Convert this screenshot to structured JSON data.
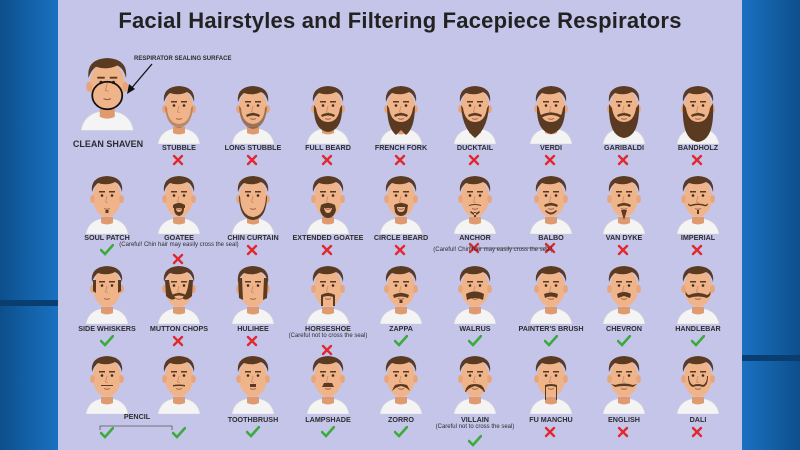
{
  "title": "Facial Hairstyles and Filtering Facepiece Respirators",
  "sealing_label": "RESPIRATOR SEALING SURFACE",
  "clean": {
    "label": "CLEAN SHAVEN"
  },
  "colors": {
    "ok": "#3cab3c",
    "bad": "#e0282d",
    "skin": "#f0b48a",
    "hair": "#5b3a22",
    "shirt": "#f4f4f4"
  },
  "styles": [
    {
      "label": "STUBBLE",
      "ok": false,
      "beard": "stubble"
    },
    {
      "label": "LONG STUBBLE",
      "ok": false,
      "beard": "longstubble"
    },
    {
      "label": "FULL BEARD",
      "ok": false,
      "beard": "full"
    },
    {
      "label": "FRENCH FORK",
      "ok": false,
      "beard": "fork"
    },
    {
      "label": "DUCKTAIL",
      "ok": false,
      "beard": "ducktail"
    },
    {
      "label": "VERDI",
      "ok": false,
      "beard": "verdi"
    },
    {
      "label": "GARIBALDI",
      "ok": false,
      "beard": "garibaldi"
    },
    {
      "label": "BANDHOLZ",
      "ok": false,
      "beard": "bandholz"
    },
    {
      "label": "SOUL PATCH",
      "ok": true,
      "beard": "soul"
    },
    {
      "label": "GOATEE",
      "ok": false,
      "beard": "goatee",
      "note": "(Careful! Chin hair may easily cross the seal)"
    },
    {
      "label": "CHIN CURTAIN",
      "ok": false,
      "beard": "curtain"
    },
    {
      "label": "EXTENDED GOATEE",
      "ok": false,
      "beard": "extgoatee"
    },
    {
      "label": "CIRCLE BEARD",
      "ok": false,
      "beard": "circle"
    },
    {
      "label": "ANCHOR",
      "ok": false,
      "beard": "anchor"
    },
    {
      "label": "BALBO",
      "ok": false,
      "beard": "balbo"
    },
    {
      "label": "VAN DYKE",
      "ok": false,
      "beard": "vandyke"
    },
    {
      "label": "IMPERIAL",
      "ok": false,
      "beard": "imperial"
    },
    {
      "label": "SIDE WHISKERS",
      "ok": true,
      "beard": "whiskers"
    },
    {
      "label": "MUTTON CHOPS",
      "ok": false,
      "beard": "mutton"
    },
    {
      "label": "HULIHEE",
      "ok": false,
      "beard": "hulihee"
    },
    {
      "label": "HORSESHOE",
      "ok": false,
      "beard": "horseshoe",
      "note": "(Careful not to cross the seal)"
    },
    {
      "label": "ZAPPA",
      "ok": true,
      "beard": "zappa"
    },
    {
      "label": "WALRUS",
      "ok": true,
      "beard": "walrus"
    },
    {
      "label": "PAINTER'S BRUSH",
      "ok": true,
      "beard": "painter"
    },
    {
      "label": "CHEVRON",
      "ok": true,
      "beard": "chevron"
    },
    {
      "label": "HANDLEBAR",
      "ok": true,
      "beard": "handlebar"
    },
    {
      "label": "",
      "ok": true,
      "beard": "pencil"
    },
    {
      "label": "",
      "ok": true,
      "beard": "pencil2"
    },
    {
      "label": "TOOTHBRUSH",
      "ok": true,
      "beard": "toothbrush"
    },
    {
      "label": "LAMPSHADE",
      "ok": true,
      "beard": "lampshade"
    },
    {
      "label": "ZORRO",
      "ok": true,
      "beard": "zorro"
    },
    {
      "label": "VILLAIN",
      "ok": true,
      "beard": "villain",
      "note": "(Careful not to cross the seal)"
    },
    {
      "label": "FU MANCHU",
      "ok": false,
      "beard": "fumanchu"
    },
    {
      "label": "ENGLISH",
      "ok": false,
      "beard": "english"
    },
    {
      "label": "DALI",
      "ok": false,
      "beard": "dali"
    }
  ],
  "group_labels": {
    "pencil": "PENCIL",
    "anchor_note": "(Careful! Chin hair may easily cross the seal)"
  }
}
